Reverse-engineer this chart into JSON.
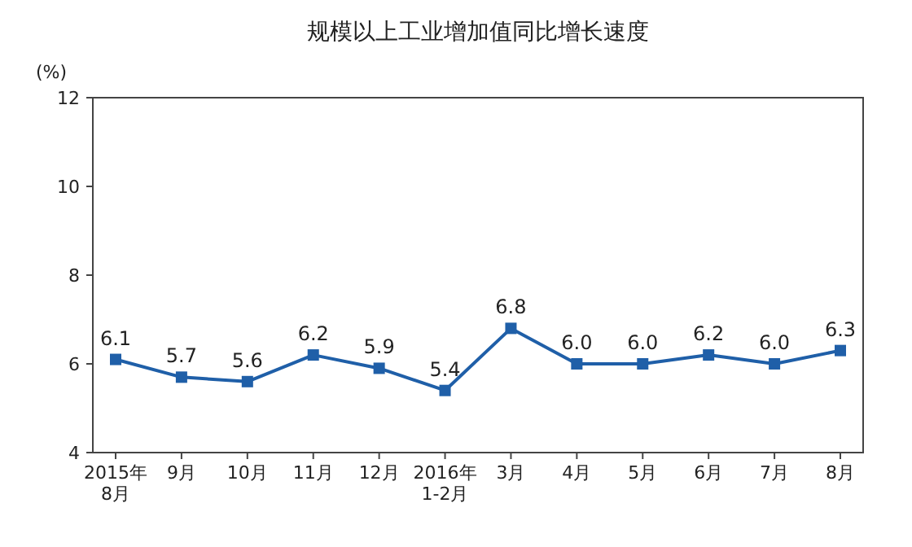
{
  "chart_data": {
    "type": "line",
    "title": "规模以上工业增加值同比增长速度",
    "ylabel": "(%)",
    "categories": [
      "2015年\n8月",
      "9月",
      "10月",
      "11月",
      "12月",
      "2016年\n1-2月",
      "3月",
      "4月",
      "5月",
      "6月",
      "7月",
      "8月"
    ],
    "values": [
      6.1,
      5.7,
      5.6,
      6.2,
      5.9,
      5.4,
      6.8,
      6.0,
      6.0,
      6.2,
      6.0,
      6.3
    ],
    "value_labels": [
      "6.1",
      "5.7",
      "5.6",
      "6.2",
      "5.9",
      "5.4",
      "6.8",
      "6.0",
      "6.0",
      "6.2",
      "6.0",
      "6.3"
    ],
    "color": "#1f5fa8",
    "ylim": [
      4,
      12
    ],
    "yticks": [
      4,
      6,
      8,
      10,
      12
    ],
    "marker": "square"
  }
}
